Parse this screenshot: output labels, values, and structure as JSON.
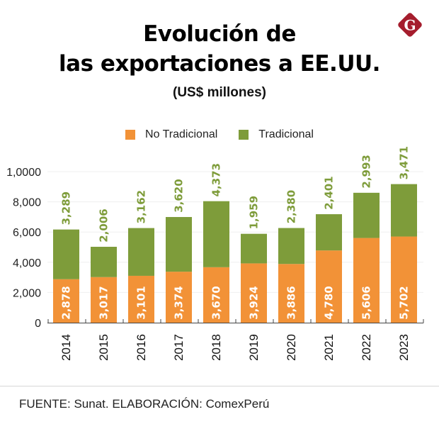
{
  "header": {
    "title_line1": "Evolución de",
    "title_line2": "las exportaciones a EE.UU.",
    "subtitle": "(US$ millones)",
    "logo": {
      "icon": "g-diamond-logo-icon",
      "letter": "G",
      "color": "#A51D2D"
    }
  },
  "legend": [
    {
      "label": "No Tradicional",
      "color": "#F29237"
    },
    {
      "label": "Tradicional",
      "color": "#7E9C3A"
    }
  ],
  "footer": "FUENTE: Sunat. ELABORACIÓN: ComexPerú",
  "chart_data": {
    "type": "bar",
    "stacked": true,
    "title": "Evolución de las exportaciones a EE.UU.",
    "subtitle": "(US$ millones)",
    "xlabel": "",
    "ylabel": "",
    "categories": [
      "2014",
      "2015",
      "2016",
      "2017",
      "2018",
      "2019",
      "2020",
      "2021",
      "2022",
      "2023"
    ],
    "series": [
      {
        "name": "No Tradicional",
        "color": "#F29237",
        "values": [
          2878,
          3017,
          3101,
          3374,
          3670,
          3924,
          3886,
          4780,
          5606,
          5702
        ],
        "labels": [
          "2,878",
          "3,017",
          "3,101",
          "3,374",
          "3,670",
          "3,924",
          "3,886",
          "4,780",
          "5,606",
          "5,702"
        ]
      },
      {
        "name": "Tradicional",
        "color": "#7E9C3A",
        "values": [
          3289,
          2006,
          3162,
          3620,
          4373,
          1959,
          2380,
          2401,
          2993,
          3471
        ],
        "labels": [
          "3,289",
          "2,006",
          "3,162",
          "3,620",
          "4,373",
          "1,959",
          "2,380",
          "2,401",
          "2,993",
          "3,471"
        ]
      }
    ],
    "yticks": [
      0,
      2000,
      4000,
      6000,
      8000,
      10000
    ],
    "ytick_labels": [
      "0",
      "2,000",
      "4,000",
      "6,000",
      "8,000",
      "1,0000"
    ],
    "ylim": [
      0,
      10000
    ],
    "grid": true,
    "legend_position": "top-center"
  }
}
